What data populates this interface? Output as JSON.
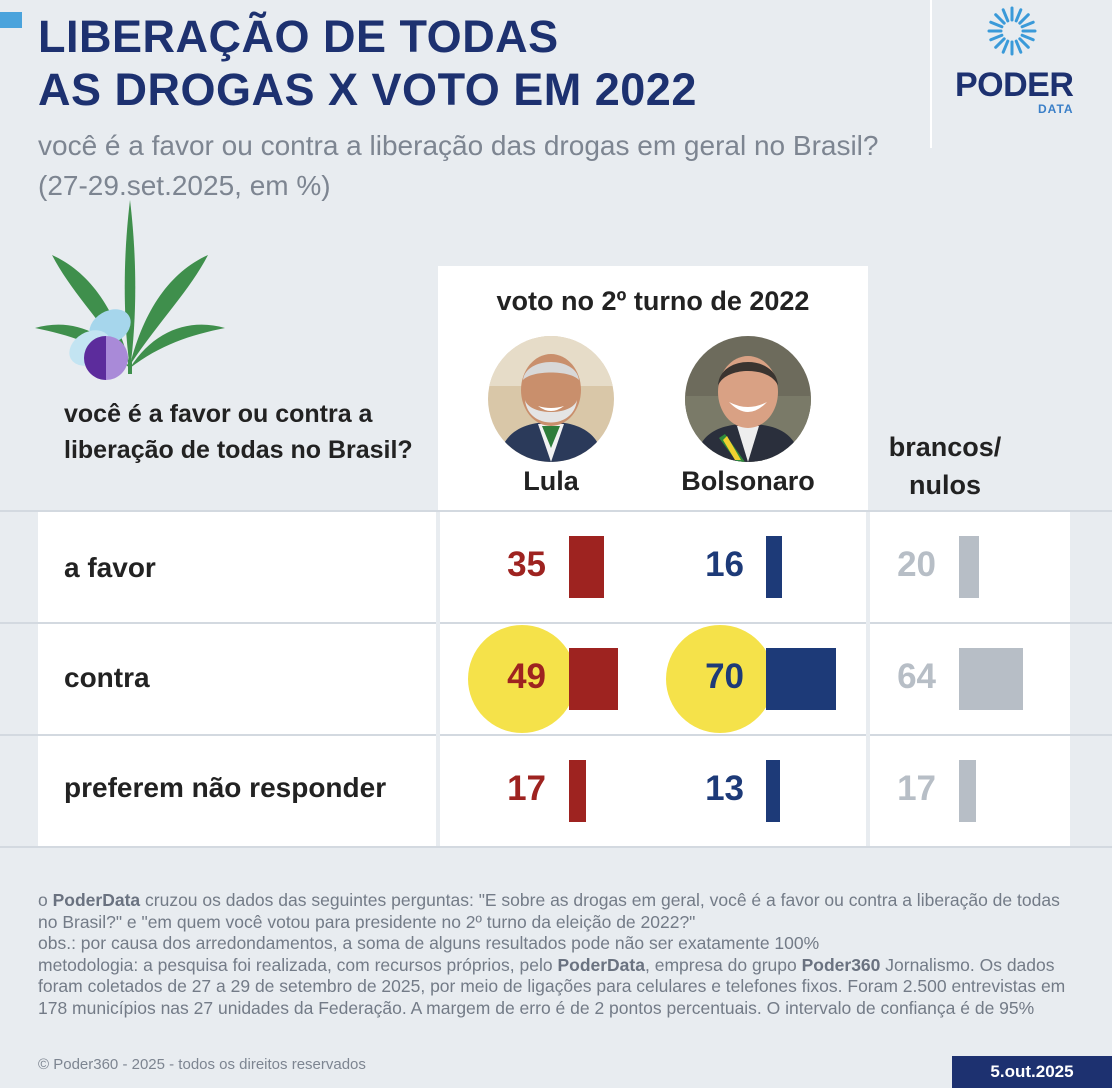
{
  "header": {
    "title_line1": "LIBERAÇÃO DE TODAS",
    "title_line2": "AS DROGAS X VOTO EM 2022",
    "subtitle": "você é a favor ou contra a liberação das drogas em geral no Brasil? (27-29.set.2025, em %)"
  },
  "logo": {
    "word": "PODER",
    "sub": "DATA"
  },
  "question": "você é a favor ou contra a liberação de todas no Brasil?",
  "columns": {
    "group_title": "voto no 2º turno de 2022",
    "lula": "Lula",
    "bolsonaro": "Bolsonaro",
    "brancos": "brancos/ nulos"
  },
  "colors": {
    "lula": "#9e2320",
    "bolsonaro": "#1d3a78",
    "brancos": "#b7bec6",
    "highlight": "#f5e24a",
    "title": "#1d3170"
  },
  "chart_data": {
    "type": "bar",
    "categories": [
      "a favor",
      "contra",
      "preferem não responder"
    ],
    "series": [
      {
        "name": "Lula",
        "values": [
          35,
          49,
          17
        ]
      },
      {
        "name": "Bolsonaro",
        "values": [
          16,
          70,
          13
        ]
      },
      {
        "name": "brancos/ nulos",
        "values": [
          20,
          64,
          17
        ]
      }
    ],
    "highlighted": [
      {
        "series": "Lula",
        "category": "contra"
      },
      {
        "series": "Bolsonaro",
        "category": "contra"
      }
    ]
  },
  "rows": [
    {
      "label": "a favor",
      "lula": "35",
      "bolsonaro": "16",
      "brancos": "20"
    },
    {
      "label": "contra",
      "lula": "49",
      "bolsonaro": "70",
      "brancos": "64"
    },
    {
      "label": "preferem não responder",
      "lula": "17",
      "bolsonaro": "13",
      "brancos": "17"
    }
  ],
  "notes": {
    "p1_a": "o ",
    "p1_brand": "PoderData",
    "p1_b": " cruzou os dados das seguintes perguntas: \"E sobre as drogas em geral, você é a favor ou contra a liberação de todas no Brasil?\" e \"em quem você votou para presidente no 2º turno da eleição de 2022?\"",
    "obs": "obs.: por causa dos arredondamentos, a soma de alguns resultados pode não ser exatamente 100%",
    "met_a": "metodologia: a pesquisa foi realizada, com recursos próprios, pelo ",
    "met_brand": "PoderData",
    "met_b": ", empresa do grupo ",
    "met_brand2": "Poder360",
    "met_c": " Jornalismo. Os dados foram coletados de 27 a 29 de setembro de 2025, por meio de ligações para celulares e telefones fixos. Foram 2.500 entrevistas em 178 municípios nas 27 unidades da Federação. A margem de erro é de 2 pontos percentuais. O intervalo de confiança é de 95%"
  },
  "footer": {
    "copyright": "© Poder360 - 2025 - todos os direitos reservados",
    "date": "5.out.2025"
  }
}
